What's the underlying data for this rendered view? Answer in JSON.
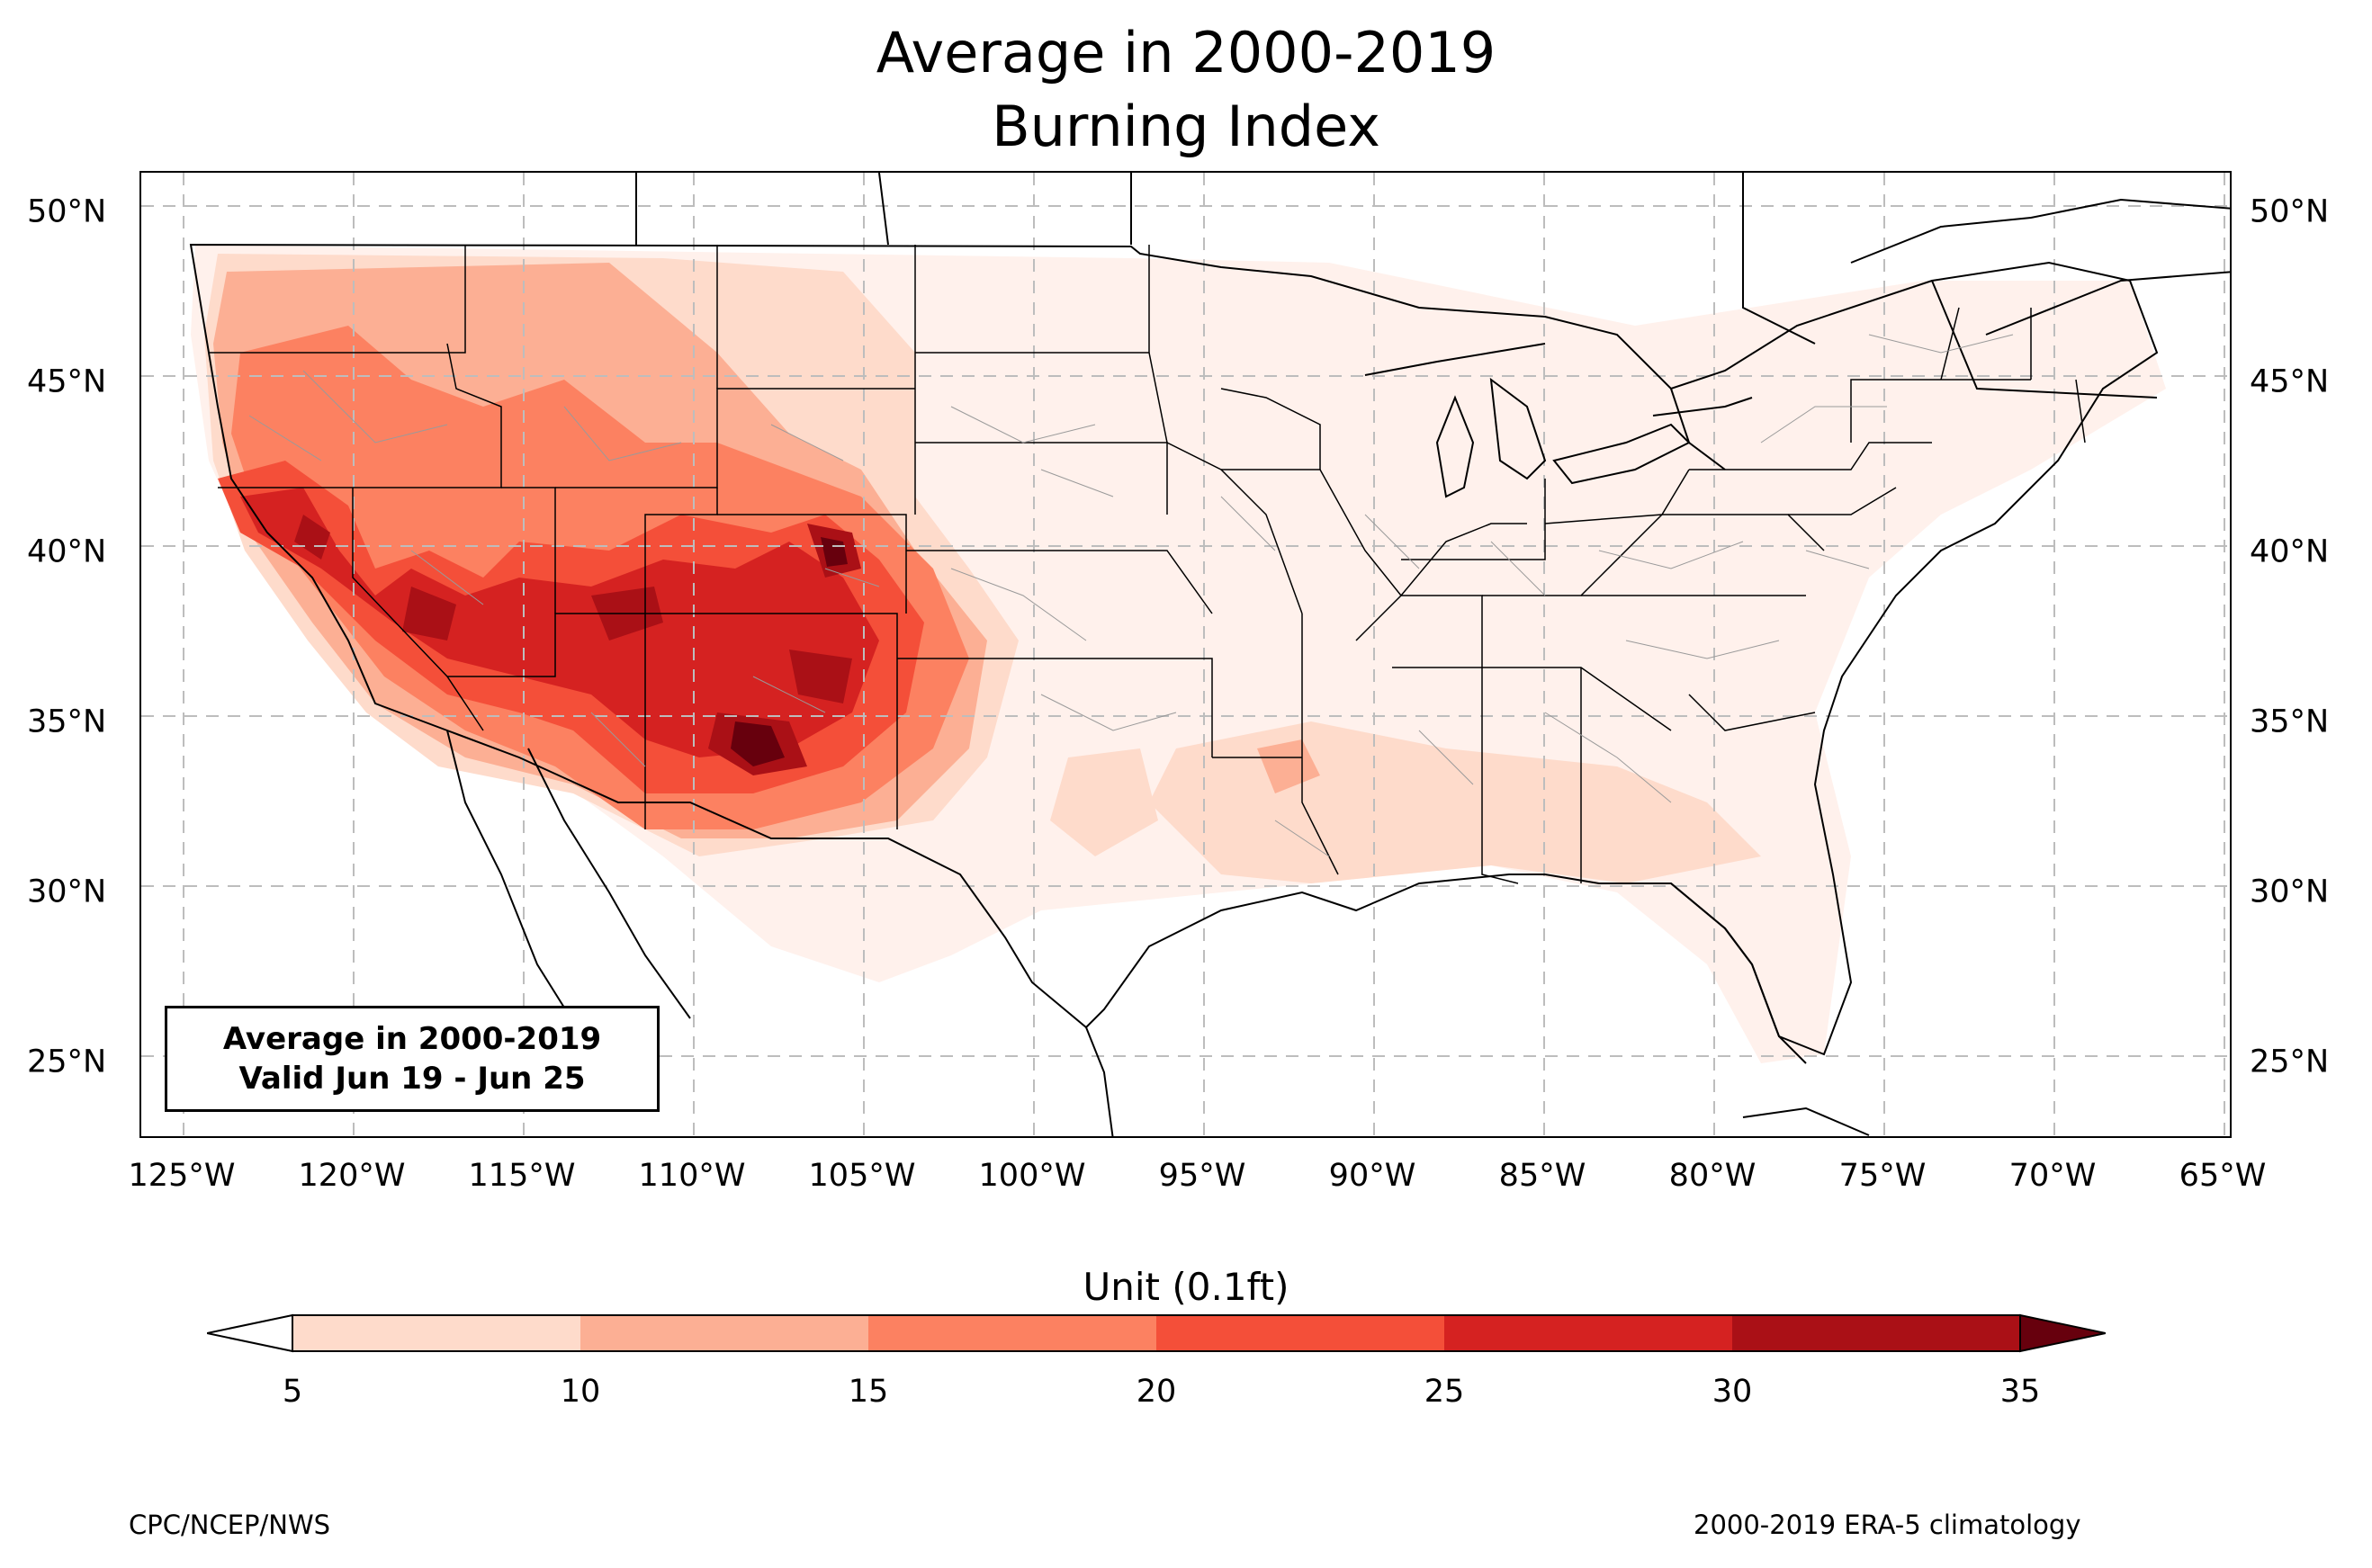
{
  "title": {
    "line1": "Average in 2000-2019",
    "line2": "Burning Index"
  },
  "map": {
    "projection": "PlateCarree",
    "lon_range": [
      -126.3,
      -64.8
    ],
    "lat_range": [
      22.8,
      51.2
    ],
    "x_ticks": [
      "125°W",
      "120°W",
      "115°W",
      "110°W",
      "105°W",
      "100°W",
      "95°W",
      "90°W",
      "85°W",
      "80°W",
      "75°W",
      "70°W",
      "65°W"
    ],
    "y_ticks": [
      "25°N",
      "30°N",
      "35°N",
      "40°N",
      "45°N",
      "50°N"
    ],
    "gridlines": true
  },
  "info_box": {
    "line1": "Average in 2000-2019",
    "line2": "Valid Jun 19 - Jun 25"
  },
  "colorbar": {
    "title": "Unit (0.1ft)",
    "levels": [
      "5",
      "10",
      "15",
      "20",
      "25",
      "30",
      "35"
    ],
    "colors": [
      "#fedbcb",
      "#fcaf94",
      "#fc8161",
      "#f44f39",
      "#d52221",
      "#aa1016"
    ],
    "under_color": "#ffffff",
    "over_color": "#67000d"
  },
  "credits": {
    "left": "CPC/NCEP/NWS",
    "right": "2000-2019 ERA-5 climatology"
  }
}
